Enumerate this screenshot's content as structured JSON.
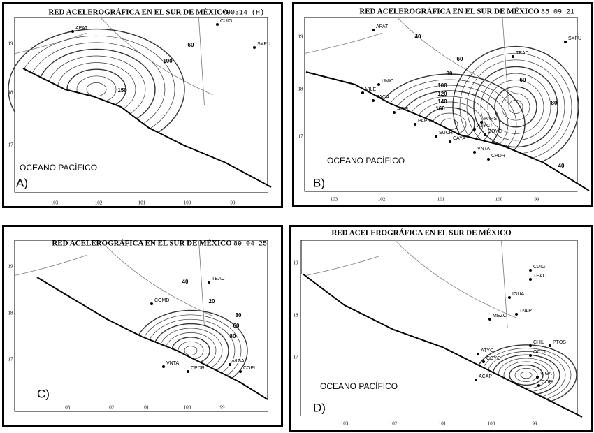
{
  "panels": [
    {
      "title": "RED ACELEROGRÁFICA EN EL SUR DE MÉXICO",
      "event": "790314 (H)",
      "letter": "A)",
      "ocean": "OCEANO PACÍFICO",
      "x_ticks": [
        "103",
        "102",
        "101",
        "100",
        "99"
      ],
      "y_ticks": [
        "19",
        "18",
        "17"
      ],
      "stations": [
        "APAT",
        "CUIG",
        "SXPU"
      ],
      "contours": [
        "100",
        "150",
        "60"
      ]
    },
    {
      "title": "RED ACELEROGRÁFICA EN EL SUR DE MÉXICO",
      "event": "85 09 21",
      "letter": "B)",
      "ocean": "OCEANO PACÍFICO",
      "x_ticks": [
        "103",
        "102",
        "101",
        "100",
        "99"
      ],
      "y_ticks": [
        "19",
        "18",
        "17"
      ],
      "stations": [
        "APAT",
        "SXPU",
        "TEAC",
        "UNIO",
        "VILE",
        "ZACA",
        "AZIH",
        "PAPN",
        "SUCH",
        "CAYA",
        "COYC",
        "VNTA",
        "CPDR",
        "PAPS",
        "ATYC"
      ],
      "contours": [
        "40",
        "60",
        "60",
        "80",
        "100",
        "120",
        "140",
        "160",
        "80",
        "40"
      ]
    },
    {
      "title": "RED ACELEROGRÁFICA EN EL SUR DE MÉXICO",
      "event": "89 04 25",
      "letter": "C)",
      "x_ticks": [
        "103",
        "102",
        "101",
        "100",
        "99"
      ],
      "y_ticks": [
        "19",
        "18",
        "17"
      ],
      "stations": [
        "TEAC",
        "COMD",
        "VNTA",
        "CPDR",
        "VIGA",
        "COPL"
      ],
      "contours": [
        "40",
        "20",
        "80",
        "60",
        "80"
      ]
    },
    {
      "title": "RED ACELEROGRÁFICA EN EL SUR DE MÉXICO",
      "letter": "D)",
      "ocean": "OCEANO PACÍFICO",
      "x_ticks": [
        "103",
        "102",
        "101",
        "100",
        "99"
      ],
      "y_ticks": [
        "19",
        "18",
        "17"
      ],
      "stations": [
        "CUIG",
        "TEAC",
        "IGUA",
        "TNLP",
        "MEZC",
        "CHIL",
        "PTOS",
        "OCTT",
        "ATYC",
        "COYC",
        "ACAP",
        "VIGA",
        "COPL"
      ]
    }
  ]
}
